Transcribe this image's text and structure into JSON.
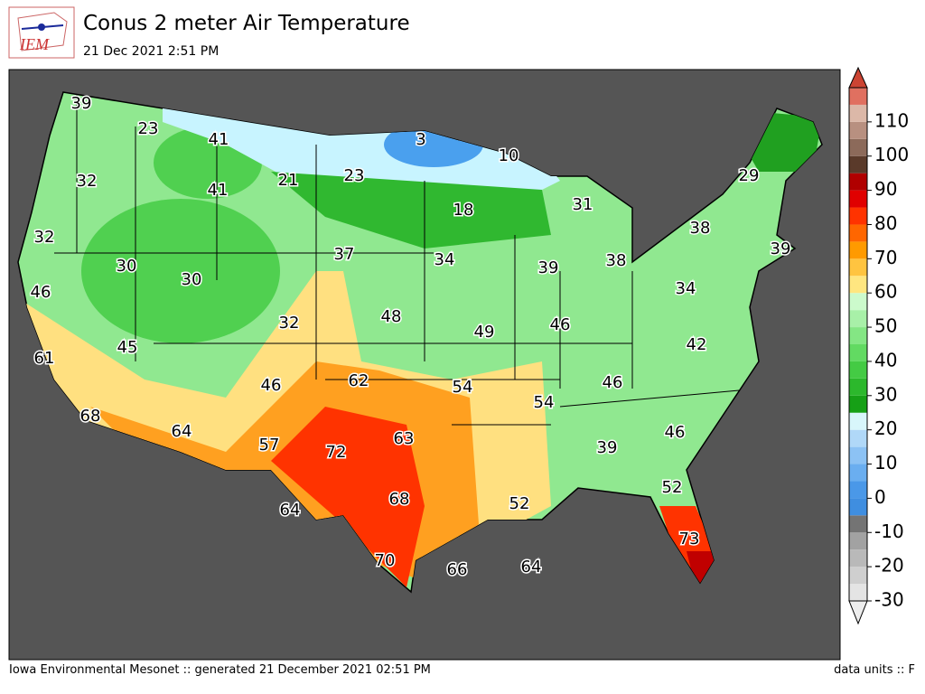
{
  "header": {
    "logo_text": "IEM",
    "title": "Conus 2 meter Air Temperature",
    "subtitle": "21 Dec 2021 2:51 PM"
  },
  "map": {
    "stations": [
      39,
      23,
      41,
      3,
      10,
      32,
      41,
      21,
      23,
      18,
      31,
      29,
      38,
      32,
      30,
      37,
      34,
      39,
      38,
      39,
      46,
      30,
      48,
      34,
      32,
      49,
      46,
      61,
      45,
      42,
      62,
      46,
      54,
      54,
      46,
      68,
      64,
      63,
      46,
      72,
      57,
      39,
      52,
      68,
      52,
      64,
      73,
      70,
      66,
      64
    ]
  },
  "colorbar": {
    "lim": [
      -30,
      120
    ],
    "ticks": [
      -30,
      -20,
      -10,
      0,
      10,
      20,
      30,
      40,
      50,
      60,
      70,
      80,
      90,
      100,
      110
    ],
    "under_color": "#ededed",
    "over_color": "#cc4433",
    "colors": [
      "#e4e4e4",
      "#cfcfcf",
      "#b9b9b9",
      "#a2a2a2",
      "#747474",
      "#3f8ee0",
      "#4a98e8",
      "#6aaef0",
      "#8cc2f4",
      "#b0d8f8",
      "#d8f6fb",
      "#16a016",
      "#2cb82c",
      "#44cb44",
      "#62da62",
      "#84e684",
      "#a8f0a8",
      "#ccfacc",
      "#ffe680",
      "#ffc440",
      "#ff9a00",
      "#ff6600",
      "#ff3300",
      "#e00000",
      "#b00000",
      "#5a3a2a",
      "#8c6a5a",
      "#b89080",
      "#dcb8a8",
      "#e07060"
    ]
  },
  "footer": {
    "left": "Iowa Environmental Mesonet :: generated 21 December 2021 02:51 PM",
    "right": "data units :: F"
  }
}
